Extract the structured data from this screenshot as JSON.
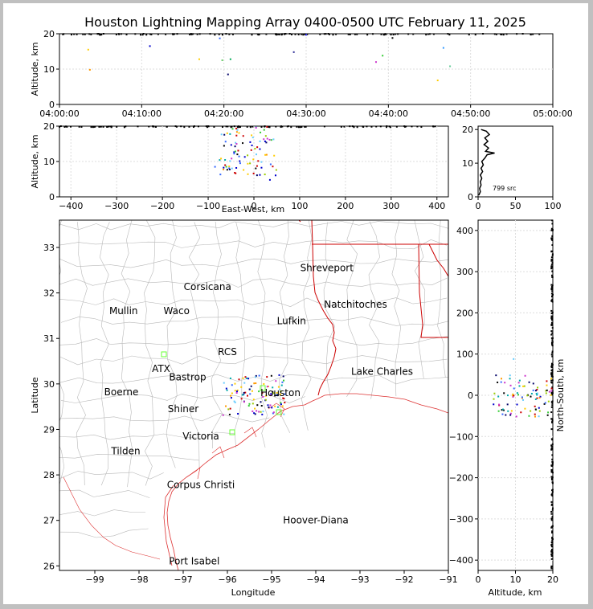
{
  "colors": {
    "frame_bg": "#c0c0c0",
    "plot_bg": "#ffffff",
    "county": "#b8b8b8",
    "state": "#cc0000",
    "coast": "#dd3333",
    "grid": "#dddddd"
  },
  "chart_data": [
    {
      "id": "time-altitude",
      "type": "scatter",
      "title": "Houston Lightning Mapping Array 0400-0500 UTC February 11, 2025",
      "ylabel": "Altitude, km",
      "xlim": [
        "04:00:00",
        "05:00:00"
      ],
      "ylim": [
        0,
        20
      ],
      "x_ticks": [
        "04:00:00",
        "04:10:00",
        "04:20:00",
        "04:30:00",
        "04:40:00",
        "04:50:00",
        "05:00:00"
      ],
      "y_ticks": [
        "0",
        "10",
        "20"
      ],
      "grid": true,
      "points": [
        {
          "t": 3.5,
          "alt": 15.5,
          "color": "#ffcc00"
        },
        {
          "t": 3.7,
          "alt": 9.8,
          "color": "#ff9900"
        },
        {
          "t": 11.0,
          "alt": 16.5,
          "color": "#0000cc"
        },
        {
          "t": 17.0,
          "alt": 12.8,
          "color": "#ffcc00"
        },
        {
          "t": 19.5,
          "alt": 18.7,
          "color": "#3366ff"
        },
        {
          "t": 19.8,
          "alt": 12.5,
          "color": "#66cc66"
        },
        {
          "t": 20.5,
          "alt": 8.5,
          "color": "#000066"
        },
        {
          "t": 20.8,
          "alt": 12.8,
          "color": "#00aa55"
        },
        {
          "t": 28.5,
          "alt": 14.8,
          "color": "#333399"
        },
        {
          "t": 30.0,
          "alt": 19.7,
          "color": "#3333ff"
        },
        {
          "t": 38.5,
          "alt": 12.0,
          "color": "#cc33cc"
        },
        {
          "t": 39.3,
          "alt": 13.8,
          "color": "#33cc33"
        },
        {
          "t": 46.0,
          "alt": 6.8,
          "color": "#ffcc00"
        },
        {
          "t": 46.7,
          "alt": 16.0,
          "color": "#3399ff"
        },
        {
          "t": 47.5,
          "alt": 10.8,
          "color": "#66cc99"
        },
        {
          "t": 40.5,
          "alt": 18.8,
          "color": "#000000"
        }
      ]
    },
    {
      "id": "ew-altitude",
      "type": "scatter",
      "xlabel": "East-West, km",
      "ylabel": "Altitude, km",
      "xlim": [
        -425,
        425
      ],
      "ylim": [
        0,
        20
      ],
      "x_ticks": [
        "−400",
        "−300",
        "−200",
        "−100",
        "0",
        "100",
        "200",
        "300",
        "400"
      ],
      "y_ticks": [
        "0",
        "10",
        "20"
      ],
      "grid": true
    },
    {
      "id": "altitude-histogram",
      "type": "line",
      "xlim": [
        0,
        100
      ],
      "ylim": [
        0,
        21
      ],
      "x_ticks": [
        "0",
        "50",
        "100"
      ],
      "y_ticks": [
        "0",
        "10",
        "20"
      ],
      "annotation": "799 src",
      "profile": [
        {
          "alt": 0.5,
          "count": 1
        },
        {
          "alt": 1.5,
          "count": 3
        },
        {
          "alt": 2.5,
          "count": 2
        },
        {
          "alt": 3.5,
          "count": 4
        },
        {
          "alt": 4.5,
          "count": 3
        },
        {
          "alt": 5.5,
          "count": 5
        },
        {
          "alt": 6.5,
          "count": 3
        },
        {
          "alt": 7.5,
          "count": 6
        },
        {
          "alt": 8.5,
          "count": 4
        },
        {
          "alt": 9.5,
          "count": 7
        },
        {
          "alt": 10.5,
          "count": 5
        },
        {
          "alt": 11.5,
          "count": 9
        },
        {
          "alt": 12.5,
          "count": 12
        },
        {
          "alt": 13.0,
          "count": 22
        },
        {
          "alt": 13.5,
          "count": 10
        },
        {
          "alt": 14.5,
          "count": 14
        },
        {
          "alt": 15.5,
          "count": 8
        },
        {
          "alt": 16.5,
          "count": 13
        },
        {
          "alt": 17.5,
          "count": 9
        },
        {
          "alt": 18.5,
          "count": 15
        },
        {
          "alt": 19.5,
          "count": 11
        },
        {
          "alt": 20.0,
          "count": 4
        }
      ]
    },
    {
      "id": "map",
      "type": "scatter",
      "xlabel": "Longitude",
      "ylabel": "Latitude",
      "xlim": [
        -99.8,
        -91.0
      ],
      "ylim": [
        25.9,
        33.6
      ],
      "x_ticks": [
        "−99",
        "−98",
        "−97",
        "−96",
        "−95",
        "−94",
        "−93",
        "−92",
        "−91"
      ],
      "y_ticks": [
        "26",
        "27",
        "28",
        "29",
        "30",
        "31",
        "32",
        "33"
      ],
      "labels": [
        {
          "text": "Shreveport",
          "lon": -93.75,
          "lat": 32.55,
          "color": "#000000"
        },
        {
          "text": "Corsicana",
          "lon": -96.45,
          "lat": 32.13,
          "color": "#000000"
        },
        {
          "text": "Natchitoches",
          "lon": -93.1,
          "lat": 31.75,
          "color": "#000000"
        },
        {
          "text": "Mullin",
          "lon": -98.35,
          "lat": 31.6,
          "color": "#ff8844"
        },
        {
          "text": "Waco",
          "lon": -97.15,
          "lat": 31.6,
          "color": "#000000"
        },
        {
          "text": "Lufkin",
          "lon": -94.55,
          "lat": 31.38,
          "color": "#000000"
        },
        {
          "text": "RCS",
          "lon": -96.0,
          "lat": 30.7,
          "color": "#660000"
        },
        {
          "text": "ATX",
          "lon": -97.5,
          "lat": 30.33,
          "color": "#ff8844"
        },
        {
          "text": "Bastrop",
          "lon": -96.9,
          "lat": 30.15,
          "color": "#000000"
        },
        {
          "text": "Lake Charles",
          "lon": -92.5,
          "lat": 30.27,
          "color": "#000000"
        },
        {
          "text": "Boerne",
          "lon": -98.4,
          "lat": 29.82,
          "color": "#000000"
        },
        {
          "text": "Houston",
          "lon": -94.8,
          "lat": 29.8,
          "color": "#ffaa33"
        },
        {
          "text": "Shiner",
          "lon": -97.0,
          "lat": 29.45,
          "color": "#000000"
        },
        {
          "text": "Victoria",
          "lon": -96.6,
          "lat": 28.85,
          "color": "#000000"
        },
        {
          "text": "Tilden",
          "lon": -98.3,
          "lat": 28.52,
          "color": "#000000"
        },
        {
          "text": "Corpus Christi",
          "lon": -96.6,
          "lat": 27.78,
          "color": "#000000"
        },
        {
          "text": "Hoover-Diana",
          "lon": -94.0,
          "lat": 27.0,
          "color": "#0000cc"
        },
        {
          "text": "Port Isabel",
          "lon": -96.75,
          "lat": 26.1,
          "color": "#000000"
        }
      ]
    },
    {
      "id": "altitude-ns",
      "type": "scatter",
      "xlabel": "Altitude, km",
      "ylabel": "North-South, km",
      "xlim": [
        0,
        20
      ],
      "ylim": [
        -425,
        425
      ],
      "x_ticks": [
        "0",
        "10",
        "20"
      ],
      "y_ticks": [
        "−400",
        "−300",
        "−200",
        "−100",
        "0",
        "100",
        "200",
        "300",
        "400"
      ],
      "grid": true
    }
  ]
}
